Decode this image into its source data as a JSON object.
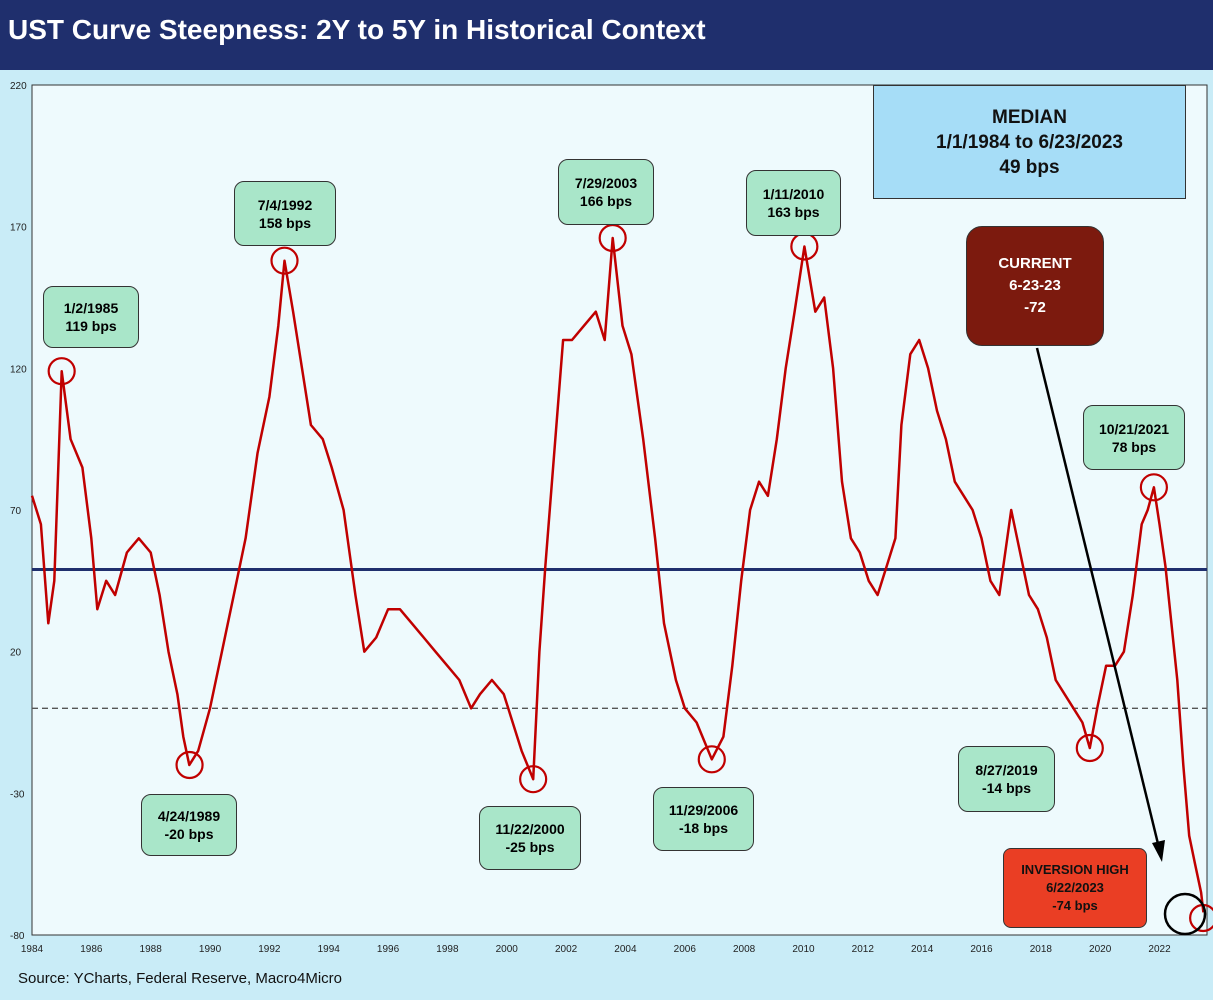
{
  "title": "UST Curve Steepness: 2Y to 5Y in Historical Context",
  "source": "Source: YCharts, Federal Reserve, Macro4Micro",
  "colors": {
    "title_bar": "#1f2f6d",
    "series": "#c00000",
    "median_line": "#1f2f6d",
    "zero_line": "#555555",
    "circle": "#c00000"
  },
  "chart_data": {
    "type": "line",
    "title": "UST Curve Steepness: 2Y to 5Y in Historical Context",
    "xlabel": "",
    "ylabel": "",
    "xlim": [
      1984,
      2023.6
    ],
    "ylim": [
      -80,
      220
    ],
    "yticks": [
      220,
      170,
      120,
      70,
      20,
      -30,
      -80
    ],
    "xticks": [
      1984,
      1986,
      1988,
      1990,
      1992,
      1994,
      1996,
      1998,
      2000,
      2002,
      2004,
      2006,
      2008,
      2010,
      2012,
      2014,
      2016,
      2018,
      2020,
      2022
    ],
    "grid": false,
    "median": 49,
    "series": [
      {
        "x": [
          1984.0,
          1984.3,
          1984.55,
          1984.75,
          1985.0,
          1985.3,
          1985.7,
          1986.0,
          1986.2,
          1986.5,
          1986.8,
          1987.2,
          1987.6,
          1988.0,
          1988.3,
          1988.6,
          1988.9,
          1989.1,
          1989.3,
          1989.6,
          1990.0,
          1990.4,
          1990.8,
          1991.2,
          1991.6,
          1992.0,
          1992.3,
          1992.51,
          1992.8,
          1993.1,
          1993.4,
          1993.8,
          1994.1,
          1994.5,
          1994.9,
          1995.2,
          1995.6,
          1996.0,
          1996.4,
          1996.8,
          1997.2,
          1997.6,
          1998.0,
          1998.4,
          1998.8,
          1999.1,
          1999.5,
          1999.9,
          2000.2,
          2000.5,
          2000.89,
          2001.1,
          2001.3,
          2001.6,
          2001.9,
          2002.2,
          2002.6,
          2003.0,
          2003.3,
          2003.57,
          2003.9,
          2004.2,
          2004.6,
          2005.0,
          2005.3,
          2005.7,
          2006.0,
          2006.4,
          2006.91,
          2007.3,
          2007.6,
          2007.9,
          2008.2,
          2008.5,
          2008.8,
          2009.1,
          2009.4,
          2009.7,
          2010.03,
          2010.4,
          2010.7,
          2011.0,
          2011.3,
          2011.6,
          2011.9,
          2012.2,
          2012.5,
          2012.8,
          2013.1,
          2013.3,
          2013.6,
          2013.9,
          2014.2,
          2014.5,
          2014.8,
          2015.1,
          2015.4,
          2015.7,
          2016.0,
          2016.3,
          2016.6,
          2017.0,
          2017.3,
          2017.6,
          2017.9,
          2018.2,
          2018.5,
          2018.8,
          2019.1,
          2019.4,
          2019.65,
          2019.9,
          2020.2,
          2020.5,
          2020.8,
          2021.1,
          2021.4,
          2021.6,
          2021.81,
          2022.0,
          2022.2,
          2022.4,
          2022.6,
          2022.8,
          2023.0,
          2023.2,
          2023.4,
          2023.48
        ],
        "y": [
          75,
          65,
          30,
          45,
          119,
          95,
          85,
          60,
          35,
          45,
          40,
          55,
          60,
          55,
          40,
          20,
          5,
          -10,
          -20,
          -15,
          0,
          20,
          40,
          60,
          90,
          110,
          135,
          158,
          140,
          120,
          100,
          95,
          85,
          70,
          40,
          20,
          25,
          35,
          35,
          30,
          25,
          20,
          15,
          10,
          0,
          5,
          10,
          5,
          -5,
          -15,
          -25,
          20,
          50,
          90,
          130,
          130,
          135,
          140,
          130,
          166,
          135,
          125,
          95,
          60,
          30,
          10,
          0,
          -5,
          -18,
          -10,
          15,
          45,
          70,
          80,
          75,
          95,
          120,
          140,
          163,
          140,
          145,
          120,
          80,
          60,
          55,
          45,
          40,
          50,
          60,
          100,
          125,
          130,
          120,
          105,
          95,
          80,
          75,
          70,
          60,
          45,
          40,
          70,
          55,
          40,
          35,
          25,
          10,
          5,
          0,
          -5,
          -14,
          0,
          15,
          15,
          20,
          40,
          65,
          70,
          78,
          65,
          50,
          30,
          10,
          -20,
          -45,
          -55,
          -65,
          -72
        ]
      }
    ],
    "annotations": [
      {
        "date": "1/2/1985",
        "value_text": "119 bps",
        "x": 1985.0,
        "y": 119
      },
      {
        "date": "4/24/1989",
        "value_text": "-20 bps",
        "x": 1989.31,
        "y": -20
      },
      {
        "date": "7/4/1992",
        "value_text": "158 bps",
        "x": 1992.51,
        "y": 158
      },
      {
        "date": "11/22/2000",
        "value_text": "-25 bps",
        "x": 2000.89,
        "y": -25
      },
      {
        "date": "7/29/2003",
        "value_text": "166 bps",
        "x": 2003.57,
        "y": 166
      },
      {
        "date": "11/29/2006",
        "value_text": "-18 bps",
        "x": 2006.91,
        "y": -18
      },
      {
        "date": "1/11/2010",
        "value_text": "163 bps",
        "x": 2010.03,
        "y": 163
      },
      {
        "date": "8/27/2019",
        "value_text": "-14 bps",
        "x": 2019.65,
        "y": -14
      },
      {
        "date": "10/21/2021",
        "value_text": "78 bps",
        "x": 2021.81,
        "y": 78
      },
      {
        "date": "6/22/2023",
        "value_text": "-74 bps",
        "x": 2023.47,
        "y": -74
      }
    ],
    "median_box": {
      "l1": "MEDIAN",
      "l2": "1/1/1984 to 6/23/2023",
      "l3": "49 bps"
    },
    "current_box": {
      "l1": "CURRENT",
      "l2": "6-23-23",
      "l3": "-72"
    },
    "inversion_box": {
      "l1": "INVERSION HIGH",
      "l2": "6/22/2023",
      "l3": "-74 bps"
    }
  }
}
